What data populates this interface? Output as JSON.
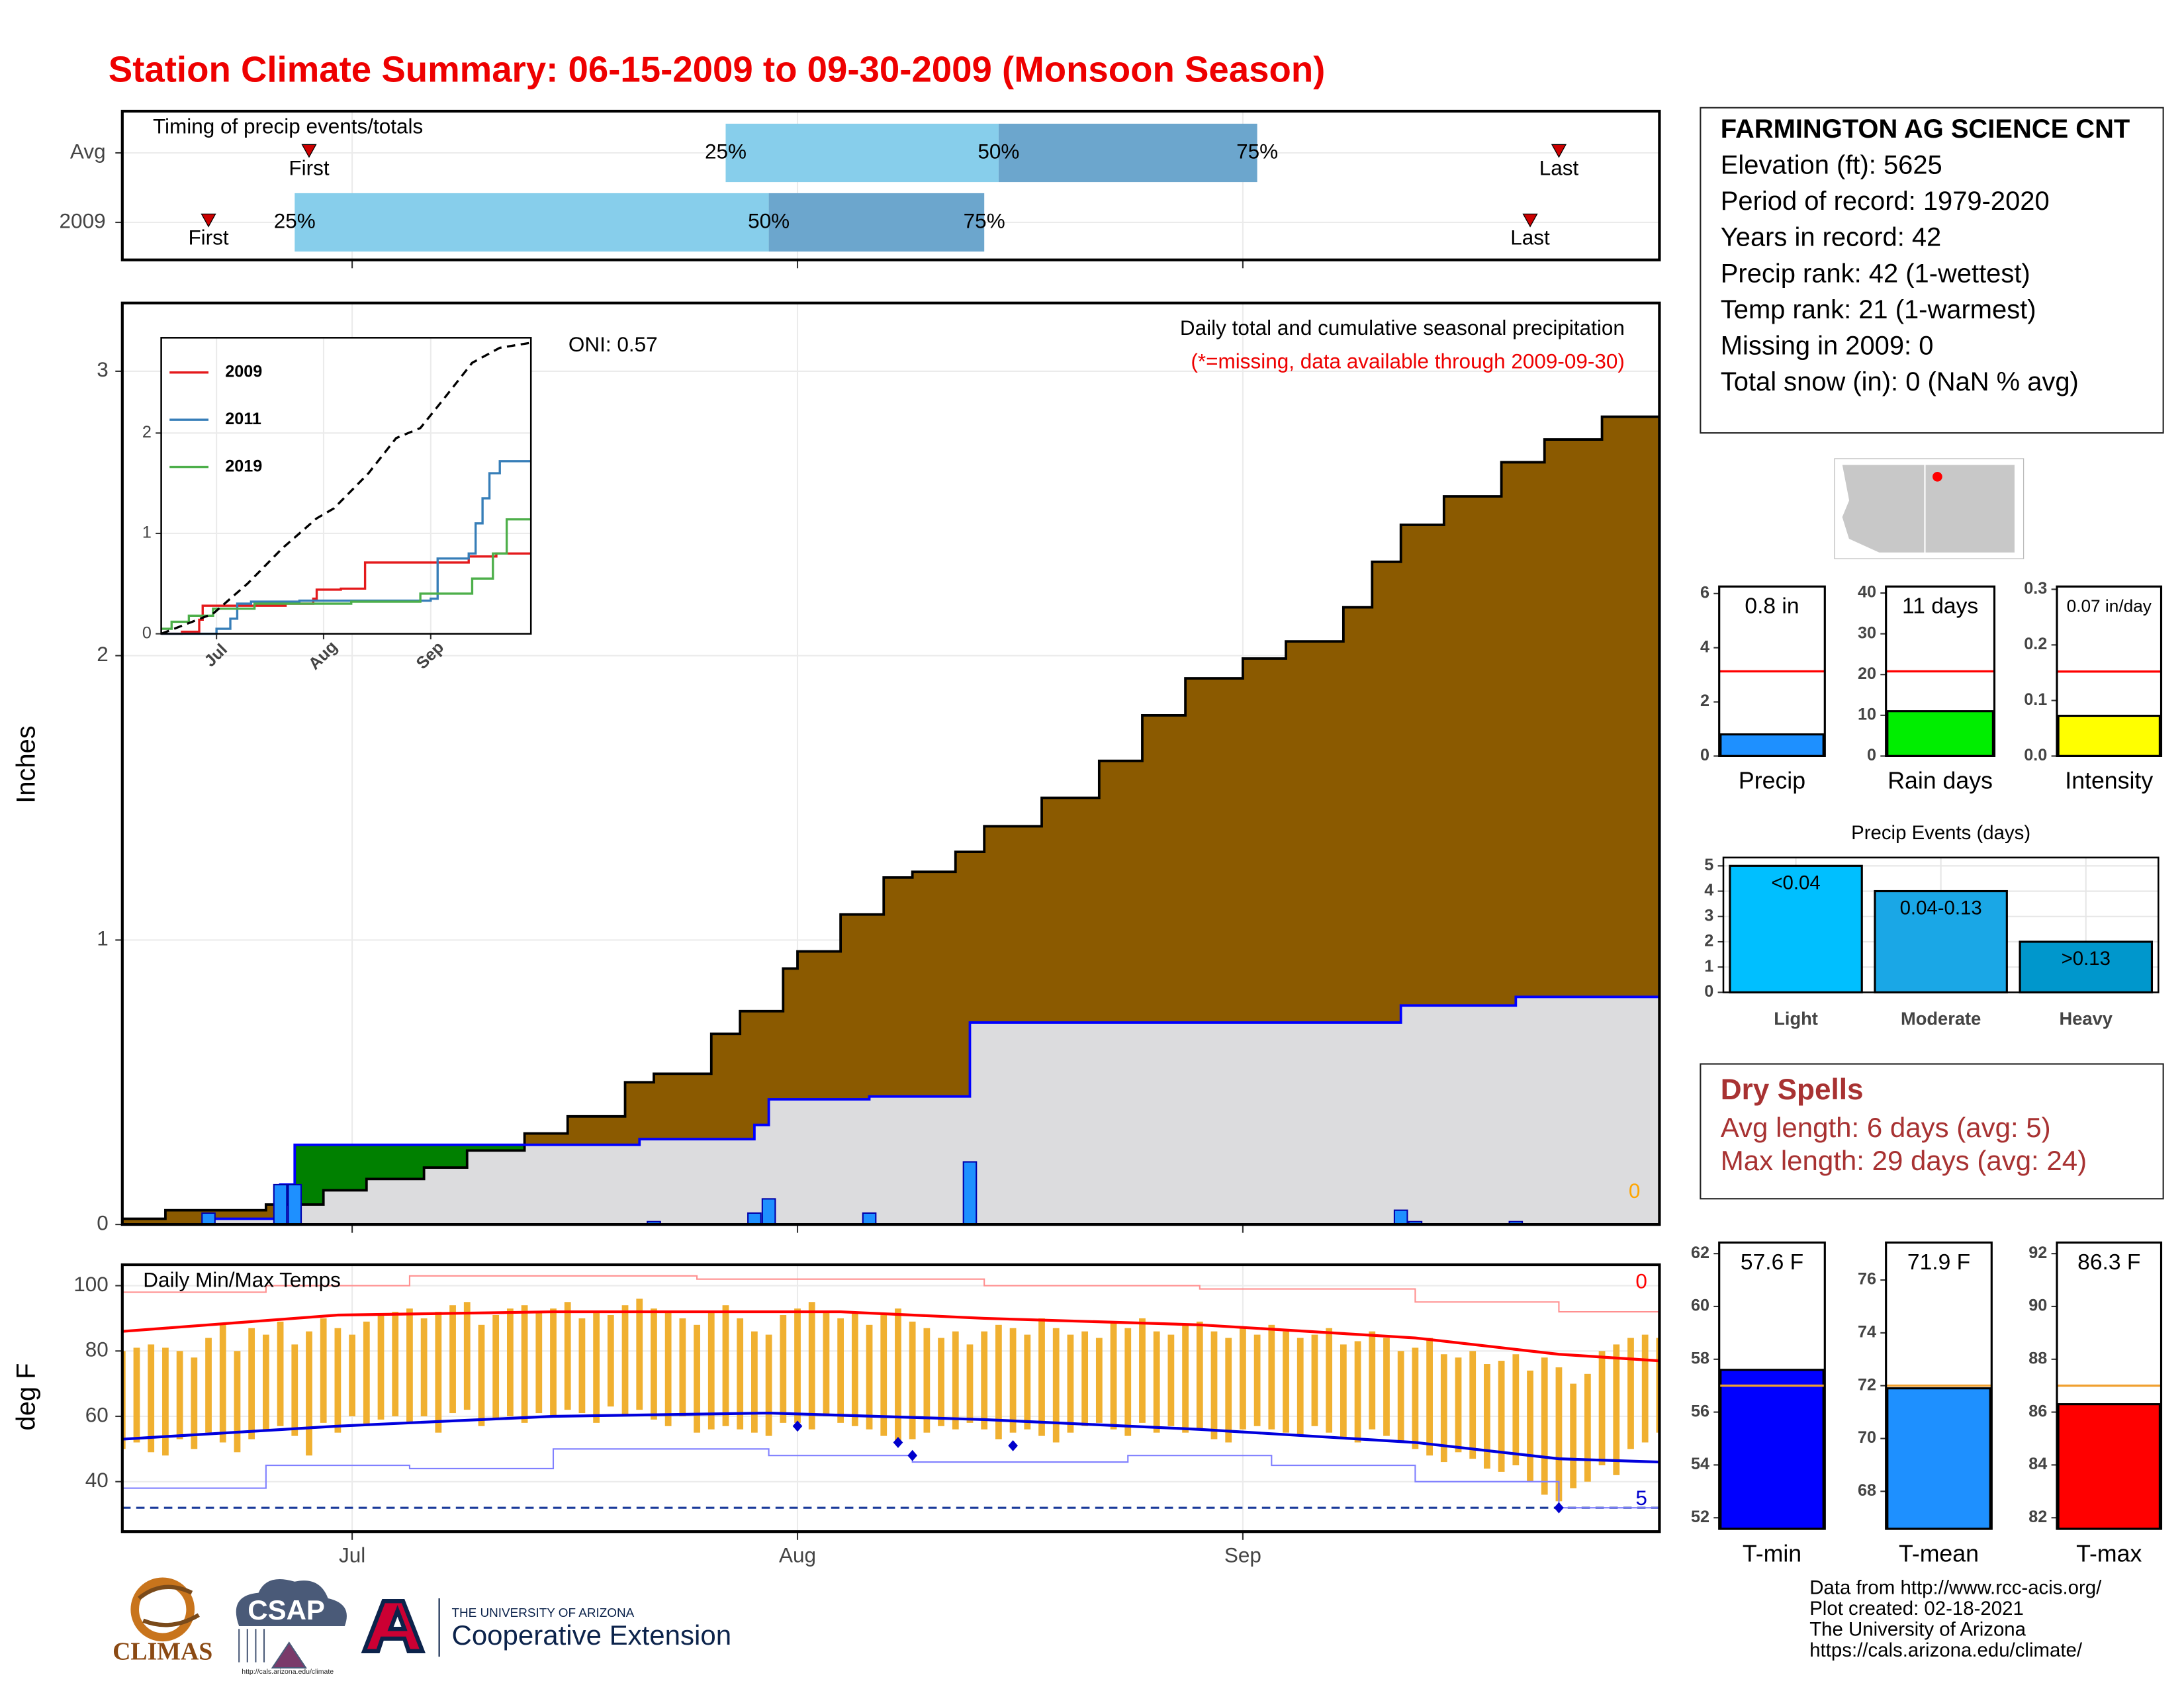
{
  "title": "Station Climate Summary: 06-15-2009 to 09-30-2009 (Monsoon Season)",
  "chart_data": [
    {
      "type": "timing",
      "title": "Timing of precip events/totals",
      "categories": [
        "Avg",
        "2009"
      ],
      "xlim": [
        0,
        107
      ],
      "xticks": [
        16,
        47,
        78
      ],
      "first": {
        "label": "First",
        "values": [
          13,
          6
        ]
      },
      "last": {
        "label": "Last",
        "values": [
          100,
          98
        ]
      },
      "quartiles": [
        {
          "label": "25%",
          "values": [
            42,
            12
          ]
        },
        {
          "label": "50%",
          "values": [
            61,
            45
          ]
        },
        {
          "label": "75%",
          "values": [
            79,
            60
          ]
        }
      ],
      "colors": [
        "#87ceeb",
        "#6ca6cd"
      ],
      "marker_color": "#cc0000"
    },
    {
      "type": "cumulative-precip",
      "title": "Daily total and cumulative seasonal precipitation",
      "subtitle": "(*=missing, data available through 2009-09-30)",
      "annotation": "ONI: 0.57",
      "missing_days": 0,
      "ylabel": "Inches",
      "xlim": [
        0,
        107
      ],
      "xticks": [
        16,
        47,
        78
      ],
      "ylim": [
        0,
        3.24
      ],
      "yticks": [
        0,
        1,
        2,
        3
      ],
      "grid": true,
      "average": {
        "color": "#8b5a00",
        "x": [
          0,
          3,
          10,
          14,
          17,
          21,
          24,
          28,
          31,
          35,
          37,
          41,
          43,
          46,
          47,
          50,
          53,
          55,
          58,
          60,
          64,
          68,
          71,
          74,
          78,
          81,
          85,
          87,
          89,
          92,
          96,
          99,
          103,
          107
        ],
        "values": [
          0.02,
          0.05,
          0.07,
          0.12,
          0.16,
          0.2,
          0.26,
          0.32,
          0.38,
          0.5,
          0.53,
          0.67,
          0.75,
          0.9,
          0.96,
          1.09,
          1.22,
          1.24,
          1.31,
          1.4,
          1.5,
          1.63,
          1.79,
          1.92,
          1.99,
          2.05,
          2.17,
          2.33,
          2.46,
          2.56,
          2.68,
          2.76,
          2.84,
          2.95
        ]
      },
      "year": {
        "color": "#dcdcde",
        "line_color": "#0000ff",
        "above_color": "#008000",
        "x": [
          0,
          6,
          11,
          12,
          36,
          44,
          45,
          52,
          59,
          89,
          97,
          107
        ],
        "values": [
          0,
          0.02,
          0.14,
          0.28,
          0.3,
          0.35,
          0.44,
          0.45,
          0.71,
          0.77,
          0.8,
          0.8
        ]
      },
      "daily": {
        "color": "#1e90ff",
        "x": [
          6,
          11,
          12,
          37,
          44,
          45,
          52,
          59,
          89,
          90,
          97
        ],
        "values": [
          0.04,
          0.14,
          0.14,
          0.01,
          0.04,
          0.09,
          0.04,
          0.22,
          0.05,
          0.01,
          0.01
        ]
      }
    },
    {
      "type": "line",
      "xlim": [
        0,
        107
      ],
      "xticks": [
        {
          "value": 16,
          "label": "Jul"
        },
        {
          "value": 47,
          "label": "Aug"
        },
        {
          "value": 78,
          "label": "Sep"
        }
      ],
      "ylim": [
        0,
        2.95
      ],
      "yticks": [
        0,
        1,
        2
      ],
      "legend": "top-left",
      "series": [
        {
          "name": "2009",
          "color": "#e41a1c",
          "step": true,
          "x": [
            0,
            6,
            11,
            12,
            36,
            44,
            45,
            52,
            59,
            89,
            97,
            107
          ],
          "values": [
            0,
            0.02,
            0.14,
            0.28,
            0.3,
            0.35,
            0.44,
            0.45,
            0.71,
            0.77,
            0.8,
            0.8
          ]
        },
        {
          "name": "2011",
          "color": "#377eb8",
          "step": true,
          "x": [
            0,
            16,
            20,
            22,
            26,
            40,
            55,
            78,
            80,
            89,
            91,
            93,
            95,
            98,
            107
          ],
          "values": [
            0,
            0.05,
            0.15,
            0.3,
            0.32,
            0.33,
            0.33,
            0.35,
            0.75,
            0.8,
            1.1,
            1.35,
            1.6,
            1.72,
            1.72
          ]
        },
        {
          "name": "2019",
          "color": "#4daf4a",
          "step": true,
          "x": [
            0,
            3,
            8,
            15,
            27,
            40,
            55,
            75,
            90,
            96,
            100,
            107
          ],
          "values": [
            0.05,
            0.12,
            0.18,
            0.25,
            0.3,
            0.3,
            0.32,
            0.4,
            0.55,
            0.8,
            1.14,
            1.14
          ]
        },
        {
          "color": "#000000",
          "dash": true,
          "step": false,
          "x": [
            0,
            15,
            25,
            35,
            45,
            50,
            60,
            68,
            75,
            82,
            90,
            98,
            107
          ],
          "values": [
            0,
            0.2,
            0.5,
            0.85,
            1.15,
            1.25,
            1.6,
            1.95,
            2.05,
            2.35,
            2.7,
            2.85,
            2.9
          ]
        }
      ]
    },
    {
      "type": "temperature",
      "title": "Daily Min/Max Temps",
      "ylabel": "deg F",
      "xlim": [
        0,
        107
      ],
      "xticks": [
        {
          "value": 16,
          "label": "Jul"
        },
        {
          "value": 47,
          "label": "Aug"
        },
        {
          "value": 78,
          "label": "Sep"
        }
      ],
      "ylim": [
        24.7,
        106.4
      ],
      "yticks": [
        40,
        60,
        80,
        100
      ],
      "grid": true,
      "bars": {
        "color": "#f0b030",
        "high": [
          80,
          81,
          82,
          81,
          80,
          78,
          84,
          88,
          80,
          87,
          85,
          89,
          82,
          86,
          90,
          87,
          85,
          89,
          91,
          92,
          93,
          90,
          92,
          94,
          95,
          88,
          91,
          93,
          94,
          92,
          93,
          95,
          90,
          92,
          91,
          94,
          96,
          93,
          92,
          90,
          88,
          92,
          94,
          90,
          86,
          85,
          91,
          93,
          95,
          92,
          90,
          92,
          88,
          91,
          93,
          89,
          87,
          84,
          86,
          82,
          86,
          88,
          87,
          85,
          90,
          87,
          85,
          86,
          84,
          89,
          87,
          90,
          86,
          85,
          88,
          89,
          86,
          84,
          87,
          85,
          88,
          86,
          84,
          85,
          87,
          82,
          83,
          86,
          84,
          80,
          81,
          84,
          79,
          78,
          80,
          76,
          77,
          79,
          74,
          78,
          75,
          70,
          73,
          80,
          82,
          84,
          85,
          84
        ],
        "low": [
          50,
          52,
          49,
          48,
          53,
          50,
          55,
          52,
          49,
          53,
          56,
          57,
          54,
          48,
          58,
          55,
          60,
          57,
          59,
          60,
          58,
          60,
          55,
          61,
          62,
          57,
          59,
          60,
          58,
          61,
          60,
          62,
          61,
          58,
          63,
          60,
          62,
          59,
          57,
          60,
          55,
          56,
          57,
          56,
          55,
          54,
          58,
          58,
          56,
          60,
          58,
          57,
          56,
          54,
          52,
          53,
          55,
          57,
          56,
          58,
          56,
          53,
          55,
          56,
          54,
          52,
          55,
          57,
          58,
          56,
          54,
          58,
          55,
          57,
          55,
          56,
          53,
          52,
          56,
          57,
          56,
          55,
          54,
          57,
          55,
          53,
          52,
          56,
          54,
          52,
          50,
          48,
          46,
          49,
          47,
          44,
          43,
          45,
          40,
          36,
          34,
          38,
          40,
          45,
          42,
          50,
          52,
          55
        ]
      },
      "lines": [
        {
          "color": "#ff9090",
          "width": 1,
          "x": [
            0,
            10,
            20,
            40,
            60,
            75,
            90,
            100,
            107
          ],
          "values": [
            98,
            100,
            103,
            102,
            100,
            99,
            95,
            92,
            89
          ]
        },
        {
          "color": "#8080ff",
          "width": 1,
          "x": [
            0,
            10,
            20,
            30,
            45,
            55,
            70,
            80,
            90,
            100,
            107
          ],
          "values": [
            38,
            45,
            44,
            50,
            48,
            46,
            48,
            45,
            40,
            32,
            28
          ]
        },
        {
          "color": "#ff0000",
          "width": 2,
          "x": [
            0,
            15,
            30,
            50,
            60,
            75,
            90,
            100,
            107
          ],
          "values": [
            86,
            91,
            92,
            92,
            90,
            88,
            84,
            79,
            77
          ]
        },
        {
          "color": "#0000dd",
          "width": 2,
          "x": [
            0,
            15,
            30,
            45,
            60,
            75,
            90,
            100,
            107
          ],
          "values": [
            53,
            57,
            60,
            61,
            59,
            56,
            52,
            47,
            46
          ]
        }
      ],
      "points": {
        "color": "#0000cc",
        "x": [
          47,
          54,
          55,
          62,
          100
        ],
        "values": [
          57,
          52,
          48,
          51,
          32
        ]
      },
      "freeze_line": {
        "value": 32,
        "color": "#1a3a9a"
      },
      "record_high_count": 0,
      "record_high_color": "#ff0000",
      "record_low_count": 5,
      "record_low_color": "#0000cc"
    },
    {
      "type": "mini-bar",
      "xlabel": "Precip",
      "value": 0.8,
      "value_label": "0.8 in",
      "average": 3.13,
      "color": "#1e90ff",
      "avg_color": "#ff0000",
      "ylim": [
        0,
        6.26
      ],
      "yticks": [
        0,
        2,
        4,
        6
      ]
    },
    {
      "type": "mini-bar",
      "xlabel": "Rain days",
      "value": 11,
      "value_label": "11 days",
      "average": 20.8,
      "color": "#00ee00",
      "avg_color": "#ff0000",
      "ylim": [
        0,
        41.6
      ],
      "yticks": [
        0,
        10,
        20,
        30,
        40
      ]
    },
    {
      "type": "mini-bar",
      "xlabel": "Intensity",
      "value": 0.0725,
      "value_label": "0.07 in/day",
      "average": 0.152,
      "color": "#ffff00",
      "avg_color": "#ff0000",
      "ylim": [
        0,
        0.305
      ],
      "yticks": [
        {
          "value": 0,
          "label": "0.0"
        },
        0.1,
        0.2,
        0.3
      ]
    },
    {
      "type": "bar",
      "title": "Precip Events (days)",
      "categories": [
        "Light",
        "Moderate",
        "Heavy"
      ],
      "ranges": [
        "<0.04",
        "0.04-0.13",
        ">0.13"
      ],
      "values": [
        5,
        4,
        2
      ],
      "colors": [
        "#00bfff",
        "#1aa7e6",
        "#0097cc"
      ],
      "ylim": [
        0,
        5.33
      ],
      "yticks": [
        0,
        1,
        2,
        3,
        4,
        5
      ],
      "grid": true
    },
    {
      "type": "mini-bar",
      "xlabel": "T-min",
      "value": 57.6,
      "value_label": "57.6 F",
      "average": 57.0,
      "color": "#0000ff",
      "avg_color": "#f0a030",
      "ylim": [
        51.58,
        62.42
      ],
      "yticks": [
        52,
        54,
        56,
        58,
        60,
        62
      ]
    },
    {
      "type": "mini-bar",
      "xlabel": "T-mean",
      "value": 71.9,
      "value_label": "71.9 F",
      "average": 72.0,
      "color": "#1e90ff",
      "avg_color": "#f0a030",
      "ylim": [
        66.58,
        77.42
      ],
      "yticks": [
        68,
        70,
        72,
        74,
        76
      ]
    },
    {
      "type": "mini-bar",
      "xlabel": "T-max",
      "value": 86.3,
      "value_label": "86.3 F",
      "average": 87.0,
      "color": "#ff0000",
      "avg_color": "#f0a030",
      "ylim": [
        81.58,
        92.42
      ],
      "yticks": [
        82,
        84,
        86,
        88,
        90,
        92
      ]
    }
  ],
  "station": {
    "name": "FARMINGTON AG SCIENCE CNT",
    "details": [
      "Elevation (ft): 5625",
      "Period of record: 1979-2020",
      "Years in record: 42",
      "Precip rank: 42 (1-wettest)",
      "Temp rank: 21 (1-warmest)",
      "Missing in 2009: 0",
      "Total snow (in): 0 (NaN % avg)"
    ]
  },
  "dry_spells": {
    "title": "Dry Spells",
    "details": [
      "Avg length: 6 days (avg: 5)",
      "Max length: 29 days (avg: 24)"
    ]
  },
  "footer": [
    "Data from http://www.rcc-acis.org/",
    "Plot created: 02-18-2021",
    "The University of Arizona",
    "https://cals.arizona.edu/climate/"
  ],
  "logos": {
    "climas": "CLIMAS",
    "csap": "CSAP",
    "csap_url": "http://cals.arizona.edu/climate",
    "ua": "THE UNIVERSITY OF ARIZONA",
    "extension": "Cooperative Extension"
  }
}
